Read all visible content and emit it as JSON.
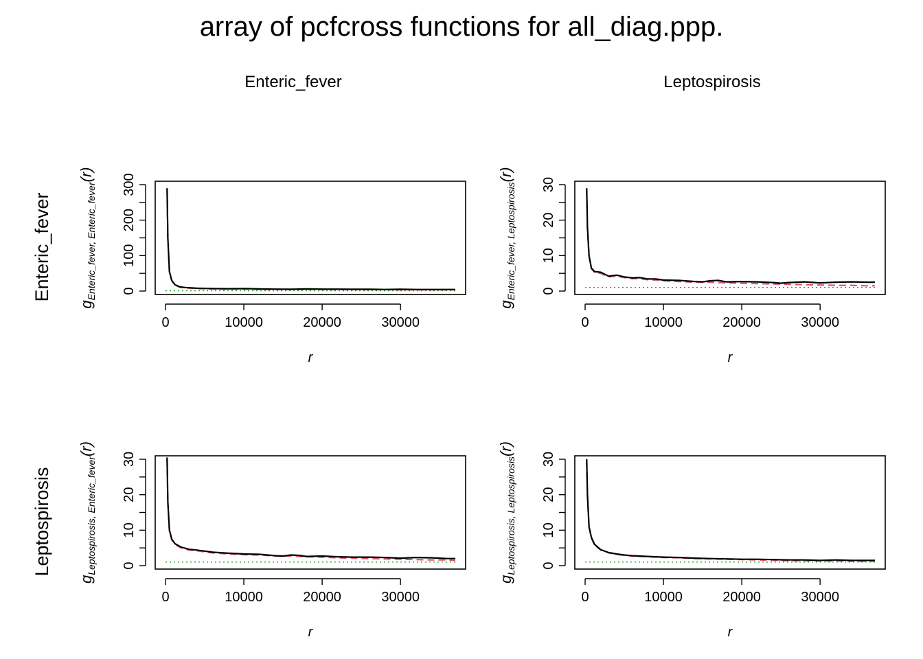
{
  "title": "array of pcfcross functions for all_diag.ppp.",
  "column_labels": [
    "Enteric_fever",
    "Leptospirosis"
  ],
  "row_labels": [
    "Enteric_fever",
    "Leptospirosis"
  ],
  "colors": {
    "observed": "#000000",
    "theoretical_poisson": "#2ca02c",
    "translation_correction": "#df536b"
  },
  "chart_data": [
    {
      "type": "line",
      "panel": "Enteric_fever, Enteric_fever",
      "xlabel": "r",
      "ylabel": {
        "main": "g",
        "sub": "Enteric_fever, Enteric_fever",
        "arg": "(r)"
      },
      "xlim": [
        0,
        37000
      ],
      "ylim": [
        0,
        300
      ],
      "xticks": [
        "0",
        "10000",
        "20000",
        "30000"
      ],
      "xtick_values": [
        0,
        10000,
        20000,
        30000
      ],
      "yticks": [
        "0",
        "100",
        "200",
        "300"
      ],
      "ytick_values": [
        0,
        100,
        200,
        300
      ],
      "series": [
        {
          "x": [
            200,
            300,
            500,
            800,
            1200,
            1800,
            2500,
            4000,
            6000,
            8000,
            10000,
            12000,
            14000,
            16000,
            18000,
            20000,
            22000,
            24000,
            26000,
            28000,
            30000,
            32000,
            34000,
            37000
          ],
          "values": [
            290,
            150,
            55,
            30,
            18,
            12,
            10,
            8,
            7,
            6.5,
            7,
            6,
            5.5,
            5,
            6,
            5.5,
            5.5,
            5,
            5,
            4.5,
            5,
            4.5,
            4.5,
            4.5
          ]
        },
        {
          "x": [
            200,
            300,
            500,
            800,
            1200,
            1800,
            2500,
            4000,
            6000,
            8000,
            10000,
            12000,
            14000,
            16000,
            18000,
            20000,
            22000,
            24000,
            26000,
            28000,
            30000,
            32000,
            34000,
            37000
          ],
          "values": [
            287,
            148,
            54,
            29,
            17,
            11,
            9,
            7,
            6,
            5.5,
            5.5,
            5,
            4.5,
            4.5,
            4.5,
            4.5,
            4,
            4,
            4,
            4,
            3.5,
            3.5,
            3.5,
            3.5
          ]
        },
        {
          "x": [
            0,
            37000
          ],
          "values": [
            1,
            1
          ]
        }
      ]
    },
    {
      "type": "line",
      "panel": "Enteric_fever, Leptospirosis",
      "xlabel": "r",
      "ylabel": {
        "main": "g",
        "sub": "Enteric_fever, Leptospirosis",
        "arg": "(r)"
      },
      "xlim": [
        0,
        37000
      ],
      "ylim": [
        0,
        30
      ],
      "xticks": [
        "0",
        "10000",
        "20000",
        "30000"
      ],
      "xtick_values": [
        0,
        10000,
        20000,
        30000
      ],
      "yticks": [
        "0",
        "10",
        "20",
        "30"
      ],
      "ytick_values": [
        0,
        10,
        20,
        30
      ],
      "series": [
        {
          "x": [
            200,
            300,
            500,
            800,
            1200,
            2000,
            3000,
            4000,
            5000,
            6000,
            7000,
            8000,
            9000,
            10000,
            12000,
            14000,
            15000,
            16000,
            17000,
            18000,
            20000,
            22000,
            24000,
            25000,
            26000,
            28000,
            30000,
            32000,
            34000,
            36000,
            37000
          ],
          "values": [
            29,
            18,
            10,
            6.5,
            5.5,
            5.3,
            4.2,
            4.5,
            4.0,
            3.7,
            3.8,
            3.4,
            3.4,
            3.1,
            3.0,
            2.7,
            2.6,
            2.9,
            3.0,
            2.6,
            2.7,
            2.6,
            2.4,
            2.2,
            2.4,
            2.6,
            2.3,
            2.5,
            2.6,
            2.5,
            2.5
          ]
        },
        {
          "x": [
            200,
            300,
            500,
            800,
            1200,
            2000,
            3000,
            4000,
            5000,
            6000,
            7000,
            8000,
            9000,
            10000,
            12000,
            14000,
            16000,
            18000,
            20000,
            22000,
            24000,
            26000,
            28000,
            30000,
            32000,
            34000,
            36000,
            37000
          ],
          "values": [
            28.5,
            17.5,
            9.8,
            6.3,
            5.3,
            5.0,
            4.0,
            4.2,
            3.8,
            3.5,
            3.5,
            3.2,
            3.1,
            2.9,
            2.7,
            2.5,
            2.5,
            2.3,
            2.2,
            2.1,
            2.0,
            1.9,
            1.8,
            1.7,
            1.6,
            1.6,
            1.5,
            1.5
          ]
        },
        {
          "x": [
            0,
            37000
          ],
          "values": [
            1,
            1
          ]
        }
      ]
    },
    {
      "type": "line",
      "panel": "Leptospirosis, Enteric_fever",
      "xlabel": "r",
      "ylabel": {
        "main": "g",
        "sub": "Leptospirosis, Enteric_fever",
        "arg": "(r)"
      },
      "xlim": [
        0,
        37000
      ],
      "ylim": [
        0,
        30
      ],
      "xticks": [
        "0",
        "10000",
        "20000",
        "30000"
      ],
      "xtick_values": [
        0,
        10000,
        20000,
        30000
      ],
      "yticks": [
        "0",
        "10",
        "20",
        "30"
      ],
      "ytick_values": [
        0,
        10,
        20,
        30
      ],
      "series": [
        {
          "x": [
            200,
            300,
            500,
            800,
            1200,
            2000,
            3000,
            4000,
            5000,
            6000,
            8000,
            10000,
            12000,
            14000,
            15000,
            16000,
            17000,
            18000,
            20000,
            22000,
            24000,
            26000,
            28000,
            30000,
            32000,
            34000,
            36000,
            37000
          ],
          "values": [
            30.5,
            18,
            10,
            7.5,
            6.2,
            5.2,
            4.6,
            4.4,
            4.1,
            3.8,
            3.5,
            3.3,
            3.2,
            2.8,
            2.7,
            3.0,
            2.9,
            2.6,
            2.7,
            2.5,
            2.4,
            2.4,
            2.3,
            2.1,
            2.3,
            2.2,
            2.0,
            2.0
          ]
        },
        {
          "x": [
            200,
            300,
            500,
            800,
            1200,
            2000,
            3000,
            4000,
            5000,
            6000,
            8000,
            10000,
            12000,
            14000,
            16000,
            18000,
            20000,
            22000,
            24000,
            26000,
            28000,
            30000,
            32000,
            34000,
            36000,
            37000
          ],
          "values": [
            30,
            17.5,
            9.8,
            7.3,
            6.0,
            5.0,
            4.4,
            4.2,
            3.9,
            3.6,
            3.3,
            3.1,
            3.0,
            2.7,
            2.7,
            2.5,
            2.4,
            2.2,
            2.1,
            2.0,
            1.9,
            1.8,
            1.7,
            1.6,
            1.6,
            1.5
          ]
        },
        {
          "x": [
            0,
            37000
          ],
          "values": [
            1,
            1
          ]
        }
      ]
    },
    {
      "type": "line",
      "panel": "Leptospirosis, Leptospirosis",
      "xlabel": "r",
      "ylabel": {
        "main": "g",
        "sub": "Leptospirosis, Leptospirosis",
        "arg": "(r)"
      },
      "xlim": [
        0,
        37000
      ],
      "ylim": [
        0,
        30
      ],
      "xticks": [
        "0",
        "10000",
        "20000",
        "30000"
      ],
      "xtick_values": [
        0,
        10000,
        20000,
        30000
      ],
      "yticks": [
        "0",
        "10",
        "20",
        "30"
      ],
      "ytick_values": [
        0,
        10,
        20,
        30
      ],
      "series": [
        {
          "x": [
            200,
            300,
            500,
            800,
            1200,
            2000,
            3000,
            4000,
            5000,
            6000,
            8000,
            10000,
            12000,
            14000,
            16000,
            18000,
            20000,
            22000,
            24000,
            26000,
            28000,
            30000,
            32000,
            34000,
            36000,
            37000
          ],
          "values": [
            30,
            20,
            11,
            8,
            6,
            4.5,
            3.7,
            3.3,
            3.0,
            2.8,
            2.6,
            2.4,
            2.3,
            2.1,
            2.0,
            1.9,
            1.8,
            1.8,
            1.7,
            1.6,
            1.6,
            1.5,
            1.6,
            1.5,
            1.5,
            1.5
          ]
        },
        {
          "x": [
            200,
            300,
            500,
            800,
            1200,
            2000,
            3000,
            4000,
            5000,
            6000,
            8000,
            10000,
            12000,
            14000,
            16000,
            18000,
            20000,
            22000,
            24000,
            26000,
            28000,
            30000,
            32000,
            34000,
            36000,
            37000
          ],
          "values": [
            29.5,
            19.5,
            10.8,
            7.8,
            5.8,
            4.4,
            3.6,
            3.2,
            2.9,
            2.7,
            2.5,
            2.3,
            2.2,
            2.0,
            1.9,
            1.8,
            1.7,
            1.6,
            1.5,
            1.4,
            1.4,
            1.3,
            1.3,
            1.2,
            1.2,
            1.2
          ]
        },
        {
          "x": [
            0,
            37000
          ],
          "values": [
            1,
            1
          ]
        }
      ]
    }
  ]
}
